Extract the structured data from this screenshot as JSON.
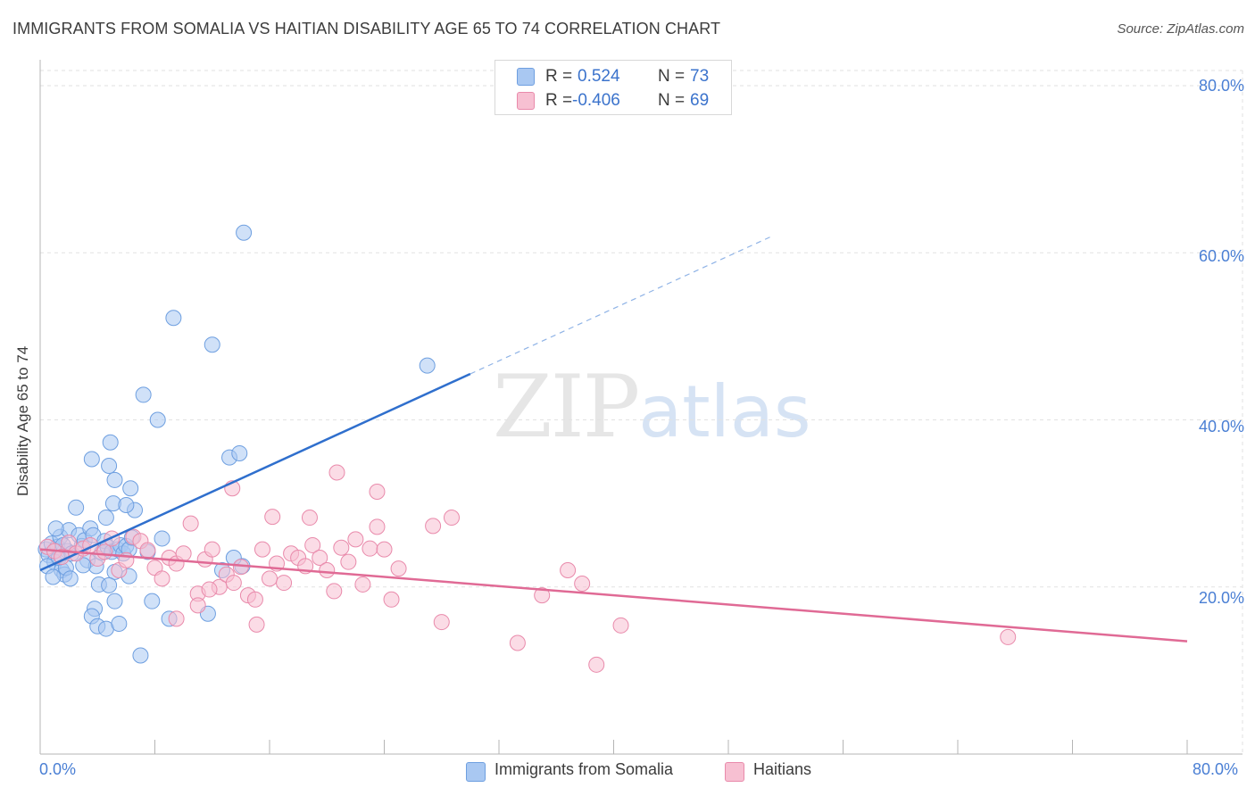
{
  "header": {
    "title": "IMMIGRANTS FROM SOMALIA VS HAITIAN DISABILITY AGE 65 TO 74 CORRELATION CHART",
    "source": "Source: ZipAtlas.com"
  },
  "watermark": {
    "zip": "ZIP",
    "atlas": "atlas"
  },
  "legend": {
    "rows": [
      {
        "r_label": "R =",
        "r_value": "0.524",
        "n_label": "N =",
        "n_value": "73",
        "color": "#a9c8f2",
        "stroke": "#6e9fe0"
      },
      {
        "r_label": "R =",
        "r_value": "-0.406",
        "n_label": "N =",
        "n_value": "69",
        "color": "#f7c0d2",
        "stroke": "#e98aab"
      }
    ]
  },
  "bottom_legend": {
    "items": [
      {
        "label": "Immigrants from Somalia",
        "color": "#a9c8f2",
        "stroke": "#6e9fe0"
      },
      {
        "label": "Haitians",
        "color": "#f7c0d2",
        "stroke": "#e98aab"
      }
    ]
  },
  "chart_data": {
    "type": "scatter",
    "title": "IMMIGRANTS FROM SOMALIA VS HAITIAN DISABILITY AGE 65 TO 74 CORRELATION CHART",
    "xlabel": "",
    "ylabel": "Disability Age 65 to 74",
    "xlim": [
      0,
      80
    ],
    "ylim": [
      0,
      80
    ],
    "x_tick_labels": [
      "0.0%",
      "80.0%"
    ],
    "y_tick_labels": [
      "20.0%",
      "40.0%",
      "60.0%",
      "80.0%"
    ],
    "y_ticks": [
      20,
      40,
      60,
      80
    ],
    "series": [
      {
        "name": "Immigrants from Somalia",
        "color": "#6e9fe0",
        "fill": "#a9c8f2",
        "trend": {
          "x": [
            0,
            30
          ],
          "y": [
            22.0,
            45.5
          ],
          "dash_to_x": 51,
          "color": "#2f6fcd"
        },
        "points": [
          [
            0.4,
            24.5
          ],
          [
            0.6,
            23.8
          ],
          [
            0.8,
            25.2
          ],
          [
            1.0,
            23.0
          ],
          [
            1.2,
            24.8
          ],
          [
            1.4,
            26.0
          ],
          [
            1.5,
            22.0
          ],
          [
            1.7,
            21.5
          ],
          [
            1.9,
            24.3
          ],
          [
            2.0,
            26.8
          ],
          [
            0.5,
            22.5
          ],
          [
            0.9,
            21.2
          ],
          [
            1.1,
            27.0
          ],
          [
            1.3,
            23.5
          ],
          [
            1.6,
            25.0
          ],
          [
            1.8,
            22.3
          ],
          [
            2.2,
            24.0
          ],
          [
            2.5,
            29.5
          ],
          [
            2.7,
            26.2
          ],
          [
            2.9,
            24.9
          ],
          [
            3.1,
            25.6
          ],
          [
            3.3,
            23.2
          ],
          [
            3.5,
            27.0
          ],
          [
            3.7,
            26.2
          ],
          [
            3.9,
            22.5
          ],
          [
            4.1,
            20.3
          ],
          [
            4.3,
            24.1
          ],
          [
            4.5,
            25.5
          ],
          [
            4.7,
            24.8
          ],
          [
            5.0,
            24.2
          ],
          [
            5.2,
            21.8
          ],
          [
            5.4,
            24.5
          ],
          [
            5.6,
            25.0
          ],
          [
            5.8,
            24.0
          ],
          [
            6.0,
            24.9
          ],
          [
            6.2,
            24.5
          ],
          [
            6.4,
            25.9
          ],
          [
            6.6,
            29.2
          ],
          [
            4.6,
            28.3
          ],
          [
            5.1,
            30.0
          ],
          [
            3.6,
            35.3
          ],
          [
            5.2,
            32.8
          ],
          [
            4.8,
            34.5
          ],
          [
            4.9,
            37.3
          ],
          [
            6.0,
            29.8
          ],
          [
            6.3,
            31.8
          ],
          [
            7.2,
            43.0
          ],
          [
            8.2,
            40.0
          ],
          [
            9.3,
            52.2
          ],
          [
            12.0,
            49.0
          ],
          [
            13.2,
            35.5
          ],
          [
            13.9,
            36.0
          ],
          [
            14.1,
            22.5
          ],
          [
            13.5,
            23.5
          ],
          [
            12.7,
            22.0
          ],
          [
            11.7,
            16.8
          ],
          [
            9.0,
            16.2
          ],
          [
            7.8,
            18.3
          ],
          [
            6.2,
            21.3
          ],
          [
            5.2,
            18.3
          ],
          [
            4.8,
            20.2
          ],
          [
            3.8,
            17.4
          ],
          [
            3.6,
            16.5
          ],
          [
            4.0,
            15.3
          ],
          [
            4.6,
            15.0
          ],
          [
            5.5,
            15.6
          ],
          [
            7.0,
            11.8
          ],
          [
            8.5,
            25.8
          ],
          [
            7.5,
            24.2
          ],
          [
            14.2,
            62.4
          ],
          [
            27.0,
            46.5
          ],
          [
            2.1,
            21.0
          ],
          [
            3.0,
            22.6
          ]
        ]
      },
      {
        "name": "Haitians",
        "color": "#e98aab",
        "fill": "#f7c0d2",
        "trend": {
          "x": [
            0,
            80
          ],
          "y": [
            24.5,
            13.5
          ],
          "color": "#e06a95"
        },
        "points": [
          [
            0.5,
            24.8
          ],
          [
            1.0,
            24.3
          ],
          [
            1.5,
            23.6
          ],
          [
            2.0,
            25.3
          ],
          [
            2.5,
            24.0
          ],
          [
            3.0,
            24.6
          ],
          [
            3.5,
            25.0
          ],
          [
            4.0,
            23.4
          ],
          [
            4.5,
            24.2
          ],
          [
            5.0,
            25.8
          ],
          [
            5.5,
            22.0
          ],
          [
            6.0,
            23.2
          ],
          [
            6.5,
            26.0
          ],
          [
            7.0,
            25.5
          ],
          [
            7.5,
            24.4
          ],
          [
            8.0,
            22.3
          ],
          [
            8.5,
            21.0
          ],
          [
            9.0,
            23.5
          ],
          [
            9.5,
            22.8
          ],
          [
            10.0,
            24.0
          ],
          [
            10.5,
            27.6
          ],
          [
            11.0,
            19.2
          ],
          [
            11.5,
            23.3
          ],
          [
            12.0,
            24.5
          ],
          [
            12.5,
            20.0
          ],
          [
            13.0,
            21.5
          ],
          [
            13.5,
            20.5
          ],
          [
            14.0,
            22.4
          ],
          [
            14.5,
            19.0
          ],
          [
            15.0,
            18.5
          ],
          [
            15.5,
            24.5
          ],
          [
            16.0,
            21.0
          ],
          [
            16.5,
            22.8
          ],
          [
            17.0,
            20.5
          ],
          [
            17.5,
            24.0
          ],
          [
            18.0,
            23.5
          ],
          [
            18.5,
            22.5
          ],
          [
            19.0,
            25.0
          ],
          [
            19.5,
            23.5
          ],
          [
            20.0,
            22.0
          ],
          [
            20.5,
            19.5
          ],
          [
            21.0,
            24.7
          ],
          [
            21.5,
            23.0
          ],
          [
            22.0,
            25.7
          ],
          [
            22.5,
            20.3
          ],
          [
            23.0,
            24.6
          ],
          [
            23.5,
            27.2
          ],
          [
            24.0,
            24.5
          ],
          [
            24.5,
            18.5
          ],
          [
            25.0,
            22.2
          ],
          [
            11.0,
            17.8
          ],
          [
            9.5,
            16.2
          ],
          [
            11.8,
            19.7
          ],
          [
            13.4,
            31.8
          ],
          [
            16.2,
            28.4
          ],
          [
            18.8,
            28.3
          ],
          [
            20.7,
            33.7
          ],
          [
            23.5,
            31.4
          ],
          [
            27.4,
            27.3
          ],
          [
            28.7,
            28.3
          ],
          [
            28.0,
            15.8
          ],
          [
            33.3,
            13.3
          ],
          [
            35.0,
            19.0
          ],
          [
            36.8,
            22.0
          ],
          [
            37.8,
            20.4
          ],
          [
            38.8,
            10.7
          ],
          [
            40.5,
            15.4
          ],
          [
            67.5,
            14.0
          ],
          [
            15.1,
            15.5
          ]
        ]
      }
    ]
  }
}
